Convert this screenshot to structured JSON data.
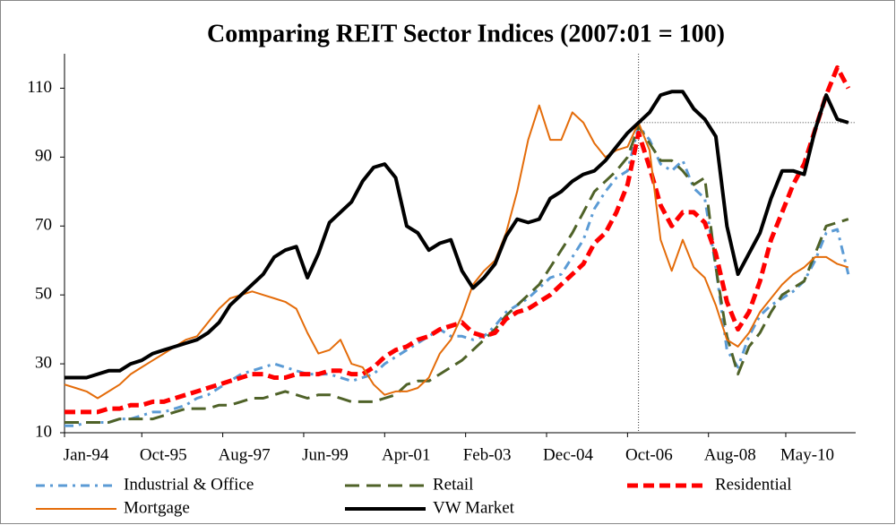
{
  "chart_data": {
    "type": "line",
    "title": "Comparing REIT Sector Indices (2007:01 = 100)",
    "x": [
      "1994-01",
      "1994-04",
      "1994-07",
      "1994-10",
      "1995-01",
      "1995-04",
      "1995-07",
      "1995-10",
      "1996-01",
      "1996-04",
      "1996-07",
      "1996-10",
      "1997-01",
      "1997-04",
      "1997-07",
      "1997-10",
      "1998-01",
      "1998-04",
      "1998-07",
      "1998-10",
      "1999-01",
      "1999-04",
      "1999-07",
      "1999-10",
      "2000-01",
      "2000-04",
      "2000-07",
      "2000-10",
      "2001-01",
      "2001-04",
      "2001-07",
      "2001-10",
      "2002-01",
      "2002-04",
      "2002-07",
      "2002-10",
      "2003-01",
      "2003-04",
      "2003-07",
      "2003-10",
      "2004-01",
      "2004-04",
      "2004-07",
      "2004-10",
      "2005-01",
      "2005-04",
      "2005-07",
      "2005-10",
      "2006-01",
      "2006-04",
      "2006-07",
      "2006-10",
      "2007-01",
      "2007-04",
      "2007-07",
      "2007-10",
      "2008-01",
      "2008-04",
      "2008-07",
      "2008-10",
      "2009-01",
      "2009-04",
      "2009-07",
      "2009-10",
      "2010-01",
      "2010-04",
      "2010-07",
      "2010-10",
      "2011-01",
      "2011-04",
      "2011-07",
      "2011-10"
    ],
    "xlim": [
      "1994-01",
      "2011-12"
    ],
    "xticks": [
      {
        "value": "1994-01",
        "label": "Jan-94"
      },
      {
        "value": "1995-10",
        "label": "Oct-95"
      },
      {
        "value": "1997-08",
        "label": "Aug-97"
      },
      {
        "value": "1999-06",
        "label": "Jun-99"
      },
      {
        "value": "2001-04",
        "label": "Apr-01"
      },
      {
        "value": "2003-02",
        "label": "Feb-03"
      },
      {
        "value": "2004-12",
        "label": "Dec-04"
      },
      {
        "value": "2006-10",
        "label": "Oct-06"
      },
      {
        "value": "2008-08",
        "label": "Aug-08"
      },
      {
        "value": "2010-05",
        "label": "May-10"
      }
    ],
    "ylim": [
      10,
      120
    ],
    "yticks": [
      10,
      30,
      50,
      70,
      90,
      110
    ],
    "reference_lines": {
      "x": "2007-01",
      "y": 100
    },
    "series": [
      {
        "name": "Industrial & Office",
        "color": "#5b9bd5",
        "width": 3,
        "dash": "10,6,3,6",
        "values": [
          12,
          12,
          13,
          13,
          13,
          14,
          14,
          15,
          16,
          16,
          17,
          18,
          20,
          21,
          23,
          25,
          27,
          28,
          29,
          30,
          29,
          28,
          27,
          27,
          27,
          26,
          25,
          26,
          27,
          30,
          32,
          34,
          36,
          38,
          40,
          38,
          38,
          37,
          38,
          41,
          45,
          47,
          49,
          52,
          55,
          56,
          61,
          66,
          75,
          80,
          84,
          86,
          99,
          95,
          88,
          86,
          89,
          81,
          78,
          58,
          34,
          29,
          38,
          44,
          47,
          49,
          51,
          54,
          60,
          68,
          69,
          56
        ]
      },
      {
        "name": "Retail",
        "color": "#4f6228",
        "width": 3,
        "dash": "16,8",
        "values": [
          13,
          13,
          13,
          13,
          13,
          14,
          14,
          14,
          14,
          15,
          16,
          17,
          17,
          17,
          18,
          18,
          19,
          20,
          20,
          21,
          22,
          21,
          20,
          21,
          21,
          20,
          19,
          19,
          19,
          20,
          21,
          24,
          25,
          25,
          27,
          29,
          31,
          34,
          37,
          40,
          44,
          47,
          50,
          53,
          58,
          63,
          68,
          74,
          80,
          83,
          86,
          90,
          99,
          94,
          89,
          89,
          86,
          82,
          84,
          58,
          38,
          27,
          35,
          39,
          45,
          50,
          52,
          54,
          62,
          70,
          71,
          72
        ]
      },
      {
        "name": "Residential",
        "color": "#ff0000",
        "width": 5,
        "dash": "12,6",
        "values": [
          16,
          16,
          16,
          16,
          17,
          17,
          18,
          18,
          19,
          19,
          20,
          21,
          22,
          23,
          24,
          25,
          26,
          27,
          27,
          26,
          26,
          27,
          27,
          27,
          28,
          28,
          27,
          27,
          29,
          32,
          34,
          35,
          37,
          38,
          40,
          41,
          42,
          39,
          38,
          39,
          43,
          45,
          46,
          48,
          50,
          53,
          56,
          59,
          65,
          68,
          74,
          82,
          97,
          87,
          76,
          70,
          74,
          74,
          71,
          62,
          48,
          40,
          45,
          54,
          66,
          74,
          82,
          88,
          98,
          108,
          116,
          110
        ]
      },
      {
        "name": "Mortgage",
        "color": "#e46c0a",
        "width": 2,
        "dash": "none",
        "values": [
          24,
          23,
          22,
          20,
          22,
          24,
          27,
          29,
          31,
          33,
          35,
          37,
          38,
          42,
          46,
          49,
          50,
          51,
          50,
          49,
          48,
          46,
          39,
          33,
          34,
          37,
          30,
          29,
          24,
          21,
          22,
          22,
          23,
          26,
          33,
          37,
          44,
          53,
          57,
          60,
          68,
          80,
          95,
          105,
          95,
          95,
          103,
          100,
          94,
          90,
          92,
          93,
          100,
          92,
          66,
          57,
          66,
          58,
          55,
          47,
          37,
          35,
          39,
          45,
          49,
          53,
          56,
          58,
          61,
          61,
          59,
          58
        ]
      },
      {
        "name": "VW Market",
        "color": "#000000",
        "width": 4,
        "dash": "none",
        "values": [
          26,
          26,
          26,
          27,
          28,
          28,
          30,
          31,
          33,
          34,
          35,
          36,
          37,
          39,
          42,
          47,
          50,
          53,
          56,
          61,
          63,
          64,
          55,
          62,
          71,
          74,
          77,
          83,
          87,
          88,
          84,
          70,
          68,
          63,
          65,
          66,
          57,
          52,
          55,
          59,
          67,
          72,
          71,
          72,
          78,
          80,
          83,
          85,
          86,
          89,
          93,
          97,
          100,
          103,
          108,
          109,
          109,
          104,
          101,
          96,
          70,
          56,
          62,
          68,
          78,
          86,
          86,
          85,
          98,
          108,
          101,
          100
        ]
      }
    ]
  }
}
